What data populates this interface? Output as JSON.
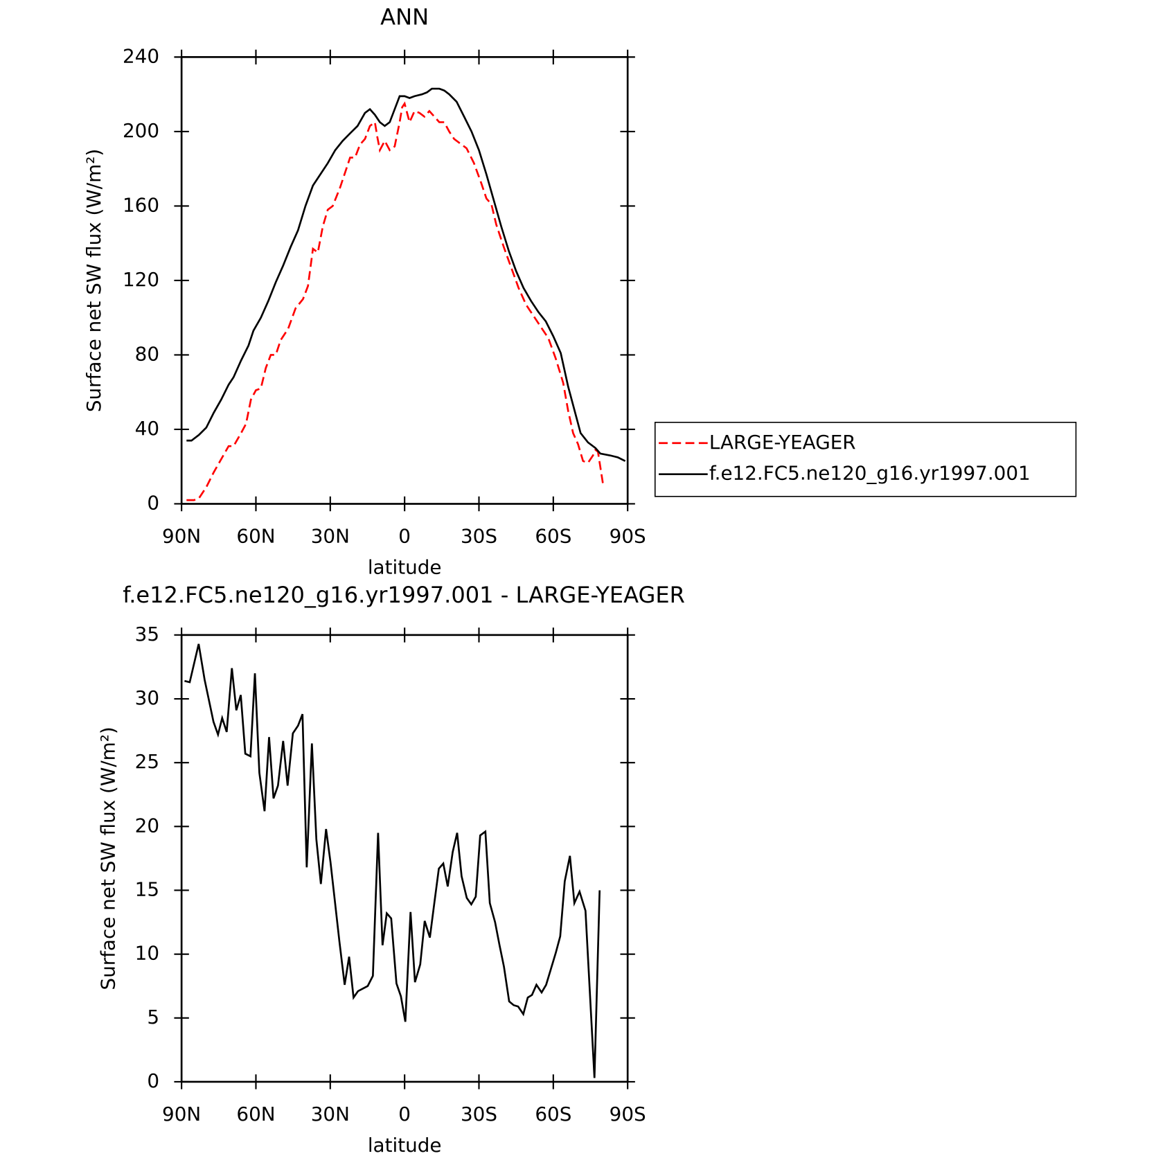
{
  "chart_data": [
    {
      "type": "line",
      "title": "ANN",
      "xlabel": "latitude",
      "ylabel": "Surface net SW flux (W/m²)",
      "xlim": [
        90,
        -90
      ],
      "xticks": [
        {
          "value": 90,
          "label": "90N"
        },
        {
          "value": 60,
          "label": "60N"
        },
        {
          "value": 30,
          "label": "30N"
        },
        0,
        {
          "value": -30,
          "label": "30S"
        },
        {
          "value": -60,
          "label": "60S"
        },
        {
          "value": -90,
          "label": "90S"
        }
      ],
      "ylim": [
        0,
        240
      ],
      "yticks": [
        0,
        40,
        80,
        120,
        160,
        200,
        240
      ],
      "legend": "right",
      "series": [
        {
          "name": "LARGE-YEAGER",
          "color": "#ff0000",
          "line_style": "dashed",
          "x": [
            88,
            85,
            83,
            80,
            77,
            74,
            71,
            69,
            66,
            64,
            62,
            60,
            58,
            56,
            54,
            52,
            50,
            47,
            44,
            41,
            39,
            37,
            35,
            33,
            31,
            29,
            26,
            24,
            22,
            20,
            18,
            16,
            14,
            12,
            11,
            10,
            8,
            6,
            4,
            2,
            1,
            0,
            -2,
            -4,
            -6,
            -8,
            -10,
            -12,
            -14,
            -16,
            -18,
            -20,
            -22,
            -25,
            -28,
            -31,
            -33,
            -35,
            -37,
            -40,
            -43,
            -46,
            -49,
            -52,
            -55,
            -58,
            -61,
            -64,
            -66,
            -68,
            -70,
            -72,
            -74,
            -76,
            -77,
            -78,
            -80
          ],
          "values": [
            2,
            2,
            3,
            9,
            17,
            24,
            31,
            31,
            38,
            43,
            56,
            61,
            62,
            73,
            80,
            80,
            88,
            94,
            105,
            110,
            117,
            137,
            135,
            149,
            158,
            160,
            170,
            178,
            186,
            186,
            193,
            196,
            203,
            205,
            197,
            190,
            195,
            190,
            192,
            205,
            213,
            215,
            205,
            211,
            210,
            208,
            211,
            208,
            205,
            205,
            200,
            196,
            194,
            191,
            183,
            172,
            164,
            161,
            150,
            138,
            127,
            116,
            107,
            101,
            95,
            89,
            78,
            65,
            50,
            38,
            32,
            23,
            22,
            26,
            29,
            28,
            11
          ]
        },
        {
          "name": "f.e12.FC5.ne120_g16.yr1997.001",
          "color": "#000000",
          "line_style": "solid",
          "x": [
            88,
            86,
            83,
            80,
            77,
            74,
            71,
            69,
            66,
            63,
            61,
            58,
            55,
            52,
            49,
            46,
            43,
            40,
            37,
            34,
            31,
            28,
            25,
            22,
            19,
            16,
            14,
            12,
            10,
            8,
            6,
            4,
            2,
            0,
            -2,
            -4,
            -7,
            -9,
            -11,
            -14,
            -16,
            -18,
            -21,
            -24,
            -27,
            -30,
            -33,
            -36,
            -39,
            -42,
            -45,
            -48,
            -51,
            -54,
            -57,
            -60,
            -63,
            -66,
            -69,
            -71,
            -74,
            -77,
            -79,
            -83,
            -86,
            -89
          ],
          "values": [
            34,
            34,
            37,
            41,
            49,
            56,
            64,
            68,
            77,
            85,
            93,
            100,
            109,
            119,
            128,
            138,
            147,
            160,
            171,
            177,
            183,
            190,
            195,
            199,
            203,
            210,
            212,
            209,
            205,
            203,
            205,
            212,
            219,
            219,
            218,
            219,
            220,
            221,
            223,
            223,
            222,
            220,
            216,
            208,
            200,
            190,
            177,
            163,
            149,
            136,
            125,
            116,
            109,
            103,
            98,
            90,
            81,
            63,
            48,
            38,
            33,
            30,
            27,
            26,
            25,
            23
          ]
        }
      ]
    },
    {
      "type": "line",
      "title": "f.e12.FC5.ne120_g16.yr1997.001 - LARGE-YEAGER",
      "xlabel": "latitude",
      "ylabel": "Surface net SW flux (W/m²)",
      "xlim": [
        90,
        -90
      ],
      "xticks": [
        {
          "value": 90,
          "label": "90N"
        },
        {
          "value": 60,
          "label": "60N"
        },
        {
          "value": 30,
          "label": "30N"
        },
        0,
        {
          "value": -30,
          "label": "30S"
        },
        {
          "value": -60,
          "label": "60S"
        },
        {
          "value": -90,
          "label": "90S"
        }
      ],
      "ylim": [
        0,
        35
      ],
      "yticks": [
        0,
        5,
        10,
        15,
        20,
        25,
        30,
        35
      ],
      "series": [
        {
          "color": "#000000",
          "line_style": "solid",
          "x": [
            88.8,
            86.7,
            83.1,
            80.7,
            77.1,
            75.3,
            73.6,
            71.8,
            69.7,
            67.9,
            66.1,
            64.3,
            62.2,
            60.4,
            58.6,
            56.5,
            54.7,
            52.9,
            51.1,
            49.0,
            47.2,
            45.1,
            43.0,
            41.2,
            39.5,
            37.4,
            35.6,
            33.8,
            31.7,
            29.9,
            26.3,
            24.2,
            22.4,
            20.6,
            18.8,
            14.9,
            12.8,
            10.7,
            8.9,
            7.2,
            5.4,
            3.3,
            1.5,
            -0.3,
            -2.4,
            -4.2,
            -6.3,
            -8.1,
            -10.2,
            -12.0,
            -13.8,
            -15.6,
            -17.4,
            -19.4,
            -21.2,
            -23.0,
            -25.1,
            -26.9,
            -28.7,
            -30.5,
            -32.6,
            -34.4,
            -36.5,
            -38.3,
            -40.1,
            -42.2,
            -44.0,
            -45.8,
            -47.9,
            -49.7,
            -51.4,
            -53.2,
            -55.3,
            -57.1,
            -61.0,
            -62.8,
            -64.6,
            -66.7,
            -68.5,
            -70.6,
            -73.0,
            -76.6,
            -78.7
          ],
          "values": [
            31.4,
            31.3,
            34.3,
            31.5,
            28.2,
            27.2,
            28.5,
            27.4,
            32.4,
            29.1,
            30.3,
            25.7,
            25.5,
            32,
            24.2,
            21.2,
            27,
            22.2,
            23.2,
            26.7,
            23.2,
            27.3,
            27.9,
            28.8,
            16.8,
            26.5,
            19,
            15.5,
            19.8,
            17.2,
            11,
            7.6,
            9.8,
            6.6,
            7.1,
            7.5,
            8.3,
            19.5,
            10.7,
            13.2,
            12.8,
            7.7,
            6.7,
            4.7,
            13.3,
            7.8,
            9.2,
            12.6,
            11.3,
            14,
            16.7,
            17.1,
            15.3,
            18,
            19.5,
            16.1,
            14.4,
            13.9,
            14.5,
            19.3,
            19.6,
            14,
            12.5,
            10.7,
            9,
            6.3,
            6,
            5.9,
            5.3,
            6.6,
            6.8,
            7.6,
            7,
            7.6,
            10.1,
            11.4,
            15.7,
            17.7,
            14,
            14.9,
            13.4,
            0.3,
            15
          ]
        }
      ]
    }
  ]
}
